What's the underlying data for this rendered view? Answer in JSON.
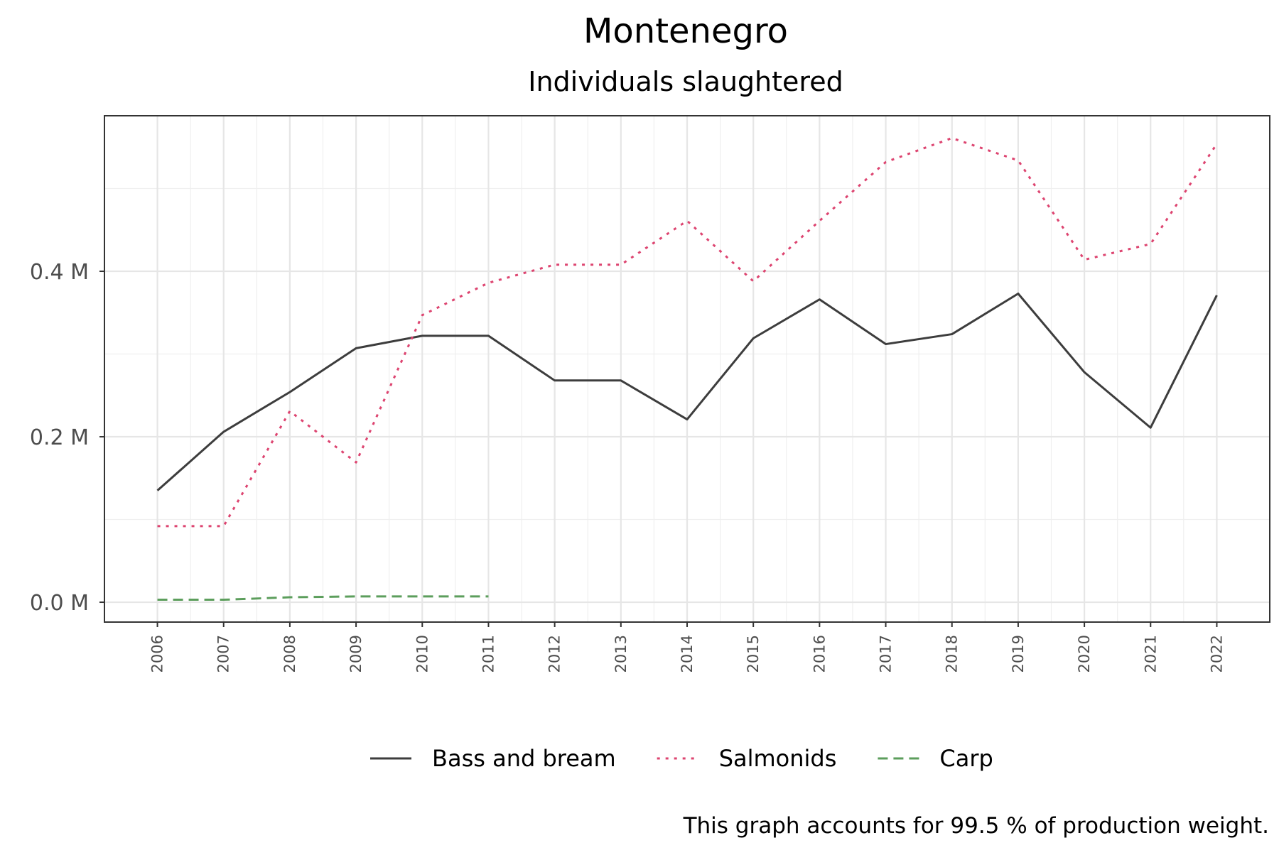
{
  "chart_data": {
    "type": "line",
    "title": "Montenegro",
    "subtitle": "Individuals slaughtered",
    "caption": "This graph accounts for 99.5 % of production weight.",
    "x": [
      2006,
      2007,
      2008,
      2009,
      2010,
      2011,
      2012,
      2013,
      2014,
      2015,
      2016,
      2017,
      2018,
      2019,
      2020,
      2021,
      2022
    ],
    "x_tick_labels": [
      "2006",
      "2007",
      "2008",
      "2009",
      "2010",
      "2011",
      "2012",
      "2013",
      "2014",
      "2015",
      "2016",
      "2017",
      "2018",
      "2019",
      "2020",
      "2021",
      "2022"
    ],
    "y_ticks": [
      0,
      0.2,
      0.4
    ],
    "y_tick_labels": [
      "0.0 M",
      "0.2 M",
      "0.4 M"
    ],
    "ylim": [
      -0.024,
      0.588
    ],
    "xlim": [
      2005.2,
      2022.8
    ],
    "grid": true,
    "legend_position": "bottom",
    "series": [
      {
        "name": "Bass and bream",
        "color": "#3d3d3d",
        "dash": "solid",
        "values": [
          0.135,
          0.206,
          0.254,
          0.307,
          0.322,
          0.322,
          0.268,
          0.268,
          0.221,
          0.319,
          0.366,
          0.312,
          0.324,
          0.373,
          0.278,
          0.211,
          0.371
        ]
      },
      {
        "name": "Salmonids",
        "color": "#dd4470",
        "dash": "dotted",
        "values": [
          0.092,
          0.092,
          0.231,
          0.169,
          0.347,
          0.386,
          0.408,
          0.408,
          0.461,
          0.388,
          0.461,
          0.532,
          0.561,
          0.534,
          0.414,
          0.433,
          0.554
        ]
      },
      {
        "name": "Carp",
        "color": "#5c9e5c",
        "dash": "dashed",
        "values": [
          0.003,
          0.003,
          0.006,
          0.007,
          0.007,
          0.007,
          null,
          null,
          null,
          null,
          null,
          null,
          null,
          null,
          null,
          null,
          null
        ]
      }
    ]
  }
}
